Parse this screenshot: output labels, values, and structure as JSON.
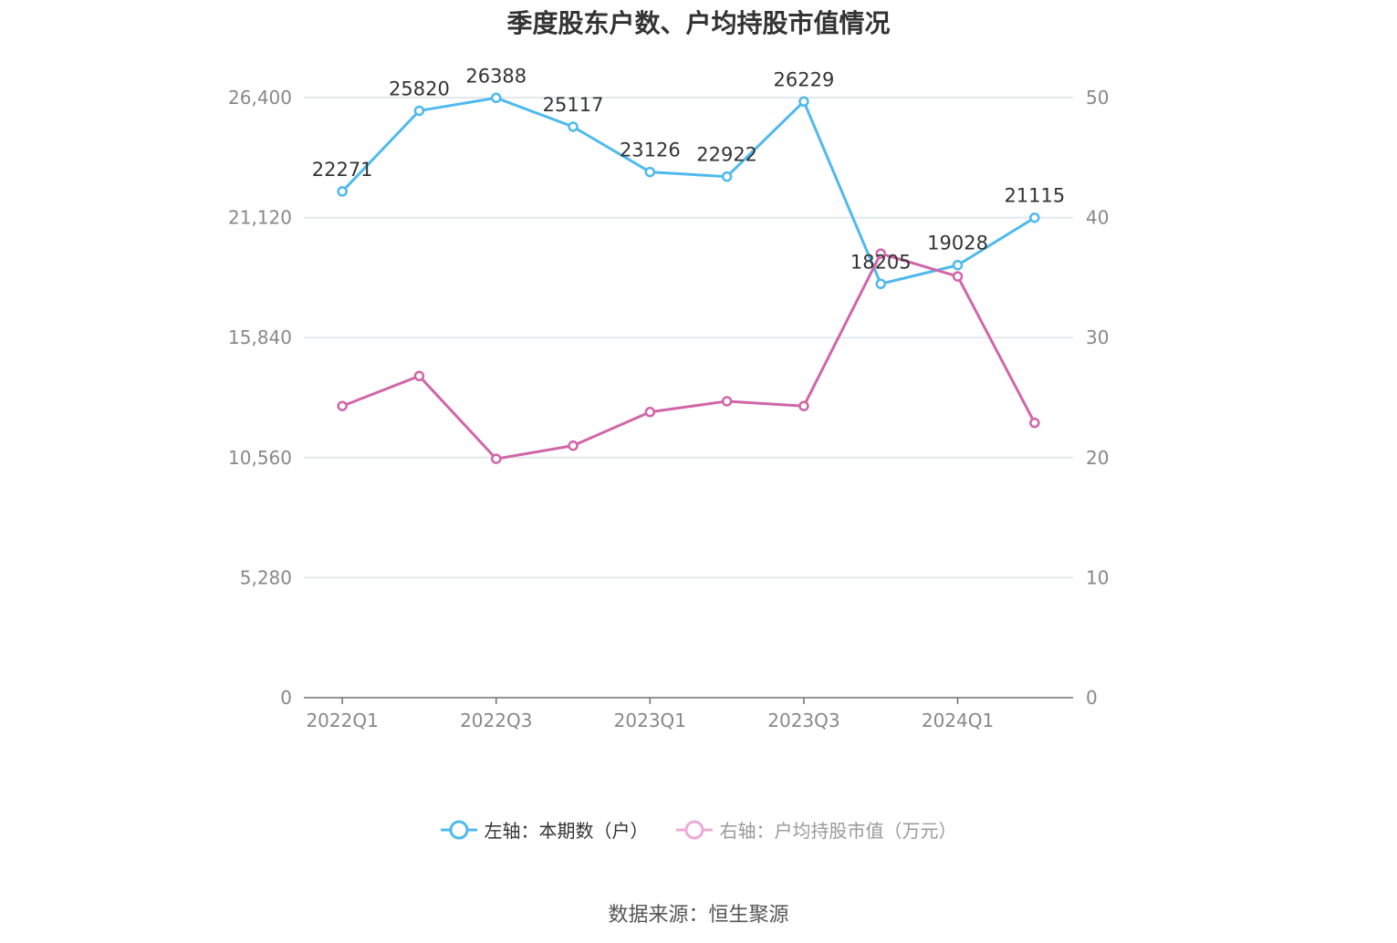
{
  "chart_data": {
    "type": "line",
    "title": "季度股东户数、户均持股市值情况",
    "categories": [
      "2022Q1",
      "2022Q2",
      "2022Q3",
      "2022Q4",
      "2023Q1",
      "2023Q2",
      "2023Q3",
      "2023Q4",
      "2024Q1",
      "2024Q2"
    ],
    "x_tick_labels": [
      "2022Q1",
      "2022Q3",
      "2023Q1",
      "2023Q3",
      "2024Q1"
    ],
    "left_axis": {
      "ylim": [
        0,
        26400
      ],
      "ticks": [
        "0",
        "5,280",
        "10,560",
        "15,840",
        "21,120",
        "26,400"
      ]
    },
    "right_axis": {
      "ylim": [
        0,
        50
      ],
      "ticks": [
        "0",
        "10",
        "20",
        "30",
        "40",
        "50"
      ]
    },
    "series": [
      {
        "name": "左轴：本期数（户）",
        "axis": "left",
        "color": "#4fb9ef",
        "values": [
          22271,
          25820,
          26388,
          25117,
          23126,
          22922,
          26229,
          18205,
          19028,
          21115
        ],
        "labels": [
          "22271",
          "25820",
          "26388",
          "25117",
          "23126",
          "22922",
          "26229",
          "18205",
          "19028",
          "21115"
        ]
      },
      {
        "name": "右轴：户均持股市值（万元）",
        "axis": "right",
        "color": "#d066a8",
        "legend_color": "#eeaad6",
        "values": [
          24.3,
          26.8,
          19.9,
          21.0,
          23.8,
          24.7,
          24.3,
          37.0,
          35.1,
          22.9
        ]
      }
    ],
    "grid": true,
    "legend_position": "bottom"
  },
  "source": "数据来源：恒生聚源"
}
